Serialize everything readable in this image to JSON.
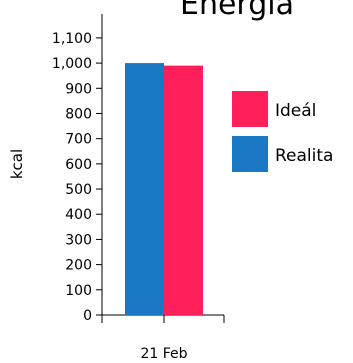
{
  "chart_data": {
    "type": "bar",
    "title": "Energia",
    "ylabel": "kcal",
    "xlabel": "",
    "ylim": [
      0,
      1150
    ],
    "yticks": [
      0,
      100,
      200,
      300,
      400,
      500,
      600,
      700,
      800,
      900,
      1000,
      1100
    ],
    "ytick_labels": [
      "0",
      "100",
      "200",
      "300",
      "400",
      "500",
      "600",
      "700",
      "800",
      "900",
      "1,000",
      "1,100"
    ],
    "categories": [
      "21 Feb"
    ],
    "series": [
      {
        "name": "Realita",
        "color": "#1a77c4",
        "values": [
          1000
        ]
      },
      {
        "name": "Ideál",
        "color": "#ff1f5a",
        "values": [
          990
        ]
      }
    ],
    "legend_order": [
      "Ideál",
      "Realita"
    ],
    "legend_position": "right",
    "grid": false
  }
}
